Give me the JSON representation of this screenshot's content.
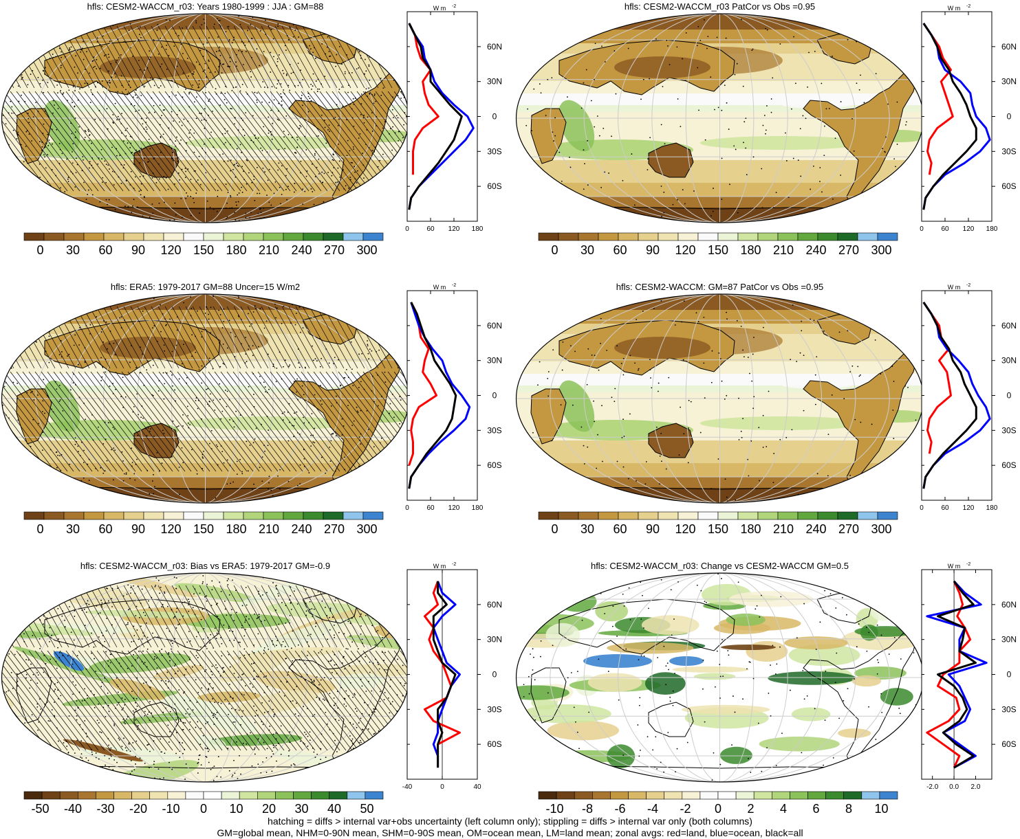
{
  "panels": [
    {
      "id": "p1",
      "title": "hfls: CESM2-WACCM_r03: Years 1980-1999 : JJA : GM=88",
      "scheme": "abs",
      "hatching": true,
      "stipple_density": "high",
      "profile": {
        "unit_main": "W m",
        "unit_exp": "-2",
        "lat_labels": [
          "60N",
          "30N",
          "0",
          "30S",
          "60S"
        ],
        "x_ticks": [
          "0",
          "60",
          "120",
          "180"
        ],
        "x_range": [
          0,
          180
        ]
      },
      "colorbar": {
        "labels": [
          "0",
          "30",
          "60",
          "90",
          "120",
          "150",
          "180",
          "210",
          "240",
          "270",
          "300"
        ]
      }
    },
    {
      "id": "p2",
      "title": "hfls: CESM2-WACCM_r03 PatCor vs Obs =0.95",
      "scheme": "abs",
      "hatching": false,
      "stipple_density": "low",
      "profile": {
        "unit_main": "W m",
        "unit_exp": "-2",
        "lat_labels": [
          "60N",
          "30N",
          "0",
          "30S",
          "60S"
        ],
        "x_ticks": [
          "0",
          "60",
          "120",
          "180"
        ],
        "x_range": [
          0,
          180
        ]
      },
      "colorbar": {
        "labels": [
          "0",
          "30",
          "60",
          "90",
          "120",
          "150",
          "180",
          "210",
          "240",
          "270",
          "300"
        ]
      }
    },
    {
      "id": "p3",
      "title": "hfls: ERA5: 1979-2017 GM=88 Uncer=15 W/m2",
      "scheme": "abs",
      "hatching": true,
      "stipple_density": "med",
      "profile": {
        "unit_main": "W m",
        "unit_exp": "-2",
        "lat_labels": [
          "60N",
          "30N",
          "0",
          "30S",
          "60S"
        ],
        "x_ticks": [
          "0",
          "60",
          "120",
          "180"
        ],
        "x_range": [
          0,
          180
        ]
      },
      "colorbar": {
        "labels": [
          "0",
          "30",
          "60",
          "90",
          "120",
          "150",
          "180",
          "210",
          "240",
          "270",
          "300"
        ]
      }
    },
    {
      "id": "p4",
      "title": "hfls: CESM2-WACCM: GM=87 PatCor vs Obs =0.95",
      "scheme": "abs",
      "hatching": false,
      "stipple_density": "low",
      "profile": {
        "unit_main": "W m",
        "unit_exp": "-2",
        "lat_labels": [
          "60N",
          "30N",
          "0",
          "30S",
          "60S"
        ],
        "x_ticks": [
          "0",
          "60",
          "120",
          "180"
        ],
        "x_range": [
          0,
          180
        ]
      },
      "colorbar": {
        "labels": [
          "0",
          "30",
          "60",
          "90",
          "120",
          "150",
          "180",
          "210",
          "240",
          "270",
          "300"
        ]
      }
    },
    {
      "id": "p5",
      "title": "hfls: CESM2-WACCM_r03: Bias vs ERA5: 1979-2017 GM=-0.9",
      "scheme": "bias",
      "hatching": true,
      "stipple_density": "high",
      "profile": {
        "unit_main": "W m",
        "unit_exp": "-2",
        "lat_labels": [
          "60N",
          "30N",
          "0",
          "30S",
          "60S"
        ],
        "x_ticks": [
          "-40",
          "0",
          "40"
        ],
        "x_range": [
          -40,
          40
        ]
      },
      "colorbar": {
        "labels": [
          "-50",
          "-40",
          "-30",
          "-20",
          "-10",
          "0",
          "10",
          "20",
          "30",
          "40",
          "50"
        ]
      }
    },
    {
      "id": "p6",
      "title": "hfls: CESM2-WACCM_r03: Change vs CESM2-WACCM GM=0.5",
      "scheme": "change",
      "hatching": false,
      "stipple_density": "low",
      "profile": {
        "unit_main": "W m",
        "unit_exp": "-2",
        "lat_labels": [
          "60N",
          "30N",
          "0",
          "30S",
          "60S"
        ],
        "x_ticks": [
          "-2.0",
          "0.0",
          "2.0"
        ],
        "x_range": [
          -3,
          3.5
        ]
      },
      "colorbar": {
        "labels": [
          "-10",
          "-8",
          "-6",
          "-4",
          "-2",
          "0",
          "2",
          "4",
          "6",
          "8",
          "10"
        ]
      }
    }
  ],
  "colors": {
    "abs": [
      "#6e4216",
      "#8b5a23",
      "#a8762e",
      "#c49840",
      "#d8b866",
      "#e6d08e",
      "#efe3b2",
      "#f7f1d6",
      "#fafafa",
      "#ecf4d8",
      "#cfe5a0",
      "#b0d57a",
      "#8cc25a",
      "#62a83e",
      "#3c8a2e",
      "#1e6a28",
      "#8fc4ec",
      "#3d84d0"
    ],
    "bias": [
      "#4a2a0d",
      "#6e4216",
      "#8b5a23",
      "#a8762e",
      "#c49840",
      "#d8b866",
      "#e6d08e",
      "#efe3b2",
      "#f7f1d6",
      "#fafafa",
      "#ffffff",
      "#ecf4d8",
      "#cfe5a0",
      "#b0d57a",
      "#8cc25a",
      "#62a83e",
      "#3c8a2e",
      "#1e6a28",
      "#8fc4ec",
      "#3d84d0"
    ],
    "profile_land": "#ff0000",
    "profile_ocean": "#0000ff",
    "profile_all": "#000000"
  },
  "footer": {
    "line1": "hatching = diffs > internal var+obs uncertainty (left column only); stippling = diffs > internal var only (both columns)",
    "line2": "GM=global mean, NHM=0-90N mean, SHM=0-90S mean, OM=ocean mean, LM=land mean; zonal avgs: red=land, blue=ocean, black=all"
  },
  "chart_data": [
    {
      "type": "line",
      "title": "hfls: CESM2-WACCM_r03: Years 1980-1999 : JJA : GM=88",
      "ylabel": "",
      "xlabel": "W m-2",
      "y_latitude": [
        80,
        70,
        60,
        50,
        40,
        30,
        20,
        10,
        0,
        -10,
        -20,
        -30,
        -40,
        -50,
        -60,
        -70,
        -80
      ],
      "xlim": [
        0,
        180
      ],
      "series": [
        {
          "name": "red=land",
          "values": [
            5,
            20,
            25,
            35,
            60,
            40,
            45,
            55,
            80,
            40,
            20,
            15,
            15,
            15,
            null,
            null,
            5
          ]
        },
        {
          "name": "blue=ocean",
          "values": [
            5,
            20,
            40,
            45,
            60,
            70,
            90,
            120,
            155,
            170,
            150,
            120,
            90,
            60,
            30,
            10,
            5
          ]
        },
        {
          "name": "black=all",
          "values": [
            5,
            20,
            35,
            40,
            60,
            60,
            85,
            110,
            140,
            130,
            120,
            100,
            80,
            55,
            30,
            10,
            5
          ]
        }
      ]
    },
    {
      "type": "line",
      "title": "hfls: CESM2-WACCM_r03 PatCor vs Obs =0.95",
      "ylabel": "",
      "xlabel": "W m-2",
      "y_latitude": [
        80,
        70,
        60,
        50,
        40,
        30,
        20,
        10,
        0,
        -10,
        -20,
        -30,
        -40,
        -50,
        -60,
        -70,
        -80
      ],
      "xlim": [
        0,
        180
      ],
      "series": [
        {
          "name": "red=land",
          "values": [
            5,
            25,
            45,
            55,
            75,
            50,
            60,
            70,
            80,
            40,
            20,
            15,
            25,
            20,
            null,
            null,
            5
          ]
        },
        {
          "name": "blue=ocean",
          "values": [
            5,
            25,
            40,
            45,
            60,
            100,
            125,
            130,
            140,
            165,
            175,
            150,
            110,
            60,
            30,
            10,
            5
          ]
        },
        {
          "name": "black=all",
          "values": [
            5,
            25,
            40,
            50,
            70,
            80,
            100,
            115,
            125,
            140,
            140,
            115,
            85,
            55,
            30,
            10,
            5
          ]
        }
      ]
    },
    {
      "type": "line",
      "title": "hfls: ERA5: 1979-2017 GM=88 Uncer=15 W/m2",
      "ylabel": "",
      "xlabel": "W m-2",
      "y_latitude": [
        80,
        70,
        60,
        50,
        40,
        30,
        20,
        10,
        0,
        -10,
        -20,
        -30,
        -40,
        -50,
        -60,
        -70,
        -80
      ],
      "xlim": [
        0,
        180
      ],
      "series": [
        {
          "name": "red=land",
          "values": [
            10,
            25,
            30,
            35,
            55,
            45,
            40,
            60,
            75,
            30,
            15,
            10,
            15,
            15,
            5,
            null,
            5
          ]
        },
        {
          "name": "blue=ocean",
          "values": [
            10,
            20,
            30,
            45,
            65,
            90,
            100,
            115,
            140,
            160,
            150,
            120,
            85,
            55,
            30,
            10,
            5
          ]
        },
        {
          "name": "black=all",
          "values": [
            10,
            25,
            35,
            45,
            60,
            70,
            90,
            110,
            125,
            120,
            115,
            100,
            75,
            50,
            30,
            10,
            5
          ]
        }
      ]
    },
    {
      "type": "line",
      "title": "hfls: CESM2-WACCM: GM=87 PatCor vs Obs =0.95",
      "ylabel": "",
      "xlabel": "W m-2",
      "y_latitude": [
        80,
        70,
        60,
        50,
        40,
        30,
        20,
        10,
        0,
        -10,
        -20,
        -30,
        -40,
        -50,
        -60,
        -70,
        -80
      ],
      "xlim": [
        0,
        180
      ],
      "series": [
        {
          "name": "red=land",
          "values": [
            5,
            25,
            45,
            50,
            70,
            45,
            65,
            70,
            75,
            40,
            20,
            15,
            25,
            20,
            null,
            null,
            5
          ]
        },
        {
          "name": "blue=ocean",
          "values": [
            5,
            25,
            40,
            45,
            65,
            95,
            120,
            130,
            145,
            165,
            175,
            150,
            110,
            60,
            30,
            10,
            5
          ]
        },
        {
          "name": "black=all",
          "values": [
            5,
            25,
            40,
            50,
            70,
            80,
            100,
            110,
            125,
            140,
            140,
            115,
            85,
            55,
            30,
            10,
            5
          ]
        }
      ]
    },
    {
      "type": "line",
      "title": "hfls: CESM2-WACCM_r03: Bias vs ERA5: 1979-2017 GM=-0.9",
      "ylabel": "",
      "xlabel": "W m-2",
      "y_latitude": [
        80,
        70,
        60,
        50,
        40,
        30,
        20,
        10,
        0,
        -10,
        -20,
        -30,
        -40,
        -50,
        -60,
        -70,
        -80
      ],
      "xlim": [
        -40,
        40
      ],
      "series": [
        {
          "name": "red=land",
          "values": [
            -5,
            -10,
            -5,
            -20,
            -10,
            -15,
            -10,
            0,
            5,
            10,
            5,
            -20,
            -10,
            20,
            -5,
            null,
            -5
          ]
        },
        {
          "name": "blue=ocean",
          "values": [
            -5,
            0,
            15,
            0,
            -10,
            -5,
            0,
            5,
            20,
            10,
            5,
            0,
            -5,
            -5,
            -10,
            -5,
            -5
          ]
        },
        {
          "name": "black=all",
          "values": [
            -5,
            -5,
            5,
            -10,
            -10,
            -10,
            -5,
            0,
            15,
            10,
            5,
            -5,
            -5,
            0,
            -5,
            -5,
            -5
          ]
        }
      ]
    },
    {
      "type": "line",
      "title": "hfls: CESM2-WACCM_r03: Change vs CESM2-WACCM GM=0.5",
      "ylabel": "",
      "xlabel": "W m-2",
      "y_latitude": [
        80,
        70,
        60,
        50,
        40,
        30,
        20,
        10,
        0,
        -10,
        -20,
        -30,
        -40,
        -50,
        -60,
        -70,
        -80
      ],
      "xlim": [
        -3,
        3.5
      ],
      "series": [
        {
          "name": "red=land",
          "values": [
            0,
            0.5,
            0.8,
            0.3,
            1.0,
            1.5,
            0.5,
            0.5,
            -1.0,
            -1.5,
            0.2,
            0.5,
            -0.5,
            -2.5,
            -1.0,
            0.5,
            0
          ]
        },
        {
          "name": "blue=ocean",
          "values": [
            0,
            1.0,
            2.5,
            -2.5,
            1.0,
            0.5,
            0.5,
            3.0,
            -0.5,
            0.5,
            1.0,
            1.5,
            1.0,
            -1.0,
            0.5,
            2.0,
            0
          ]
        },
        {
          "name": "black=all",
          "values": [
            0,
            0.8,
            1.8,
            -1.5,
            1.0,
            0.8,
            0.5,
            2.0,
            -1.5,
            0.0,
            0.8,
            1.2,
            0.5,
            -1.0,
            0.2,
            1.8,
            0
          ]
        }
      ]
    }
  ]
}
